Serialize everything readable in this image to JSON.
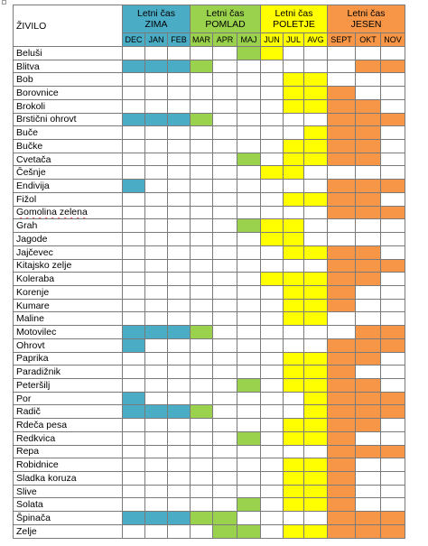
{
  "header": {
    "column_title": "ŽIVILO",
    "seasons": [
      {
        "line1": "Letni čas",
        "line2": "ZIMA",
        "key": "zima",
        "color": "#4bacc6"
      },
      {
        "line1": "Letni čas",
        "line2": "POMLAD",
        "key": "pomlad",
        "color": "#9bd24d"
      },
      {
        "line1": "Letni čas",
        "line2": "POLETJE",
        "key": "poletje",
        "color": "#ffff00"
      },
      {
        "line1": "Letni čas",
        "line2": "JESEN",
        "key": "jesen",
        "color": "#f79646"
      }
    ],
    "months": [
      "DEC",
      "JAN",
      "FEB",
      "MAR",
      "APR",
      "MAJ",
      "JUN",
      "JUL",
      "AVG",
      "SEPT",
      "OKT",
      "NOV"
    ]
  },
  "rows": [
    {
      "name": "Beluši",
      "months": [
        0,
        0,
        0,
        0,
        0,
        1,
        1,
        0,
        0,
        0,
        0,
        0
      ]
    },
    {
      "name": "Blitva",
      "months": [
        1,
        1,
        1,
        1,
        0,
        0,
        0,
        0,
        0,
        0,
        1,
        1
      ]
    },
    {
      "name": "Bob",
      "months": [
        0,
        0,
        0,
        0,
        0,
        0,
        0,
        1,
        1,
        0,
        0,
        0
      ]
    },
    {
      "name": "Borovnice",
      "months": [
        0,
        0,
        0,
        0,
        0,
        0,
        0,
        1,
        1,
        1,
        0,
        0
      ]
    },
    {
      "name": "Brokoli",
      "months": [
        0,
        0,
        0,
        0,
        0,
        0,
        0,
        1,
        1,
        1,
        1,
        0
      ]
    },
    {
      "name": "Brstični ohrovt",
      "months": [
        1,
        1,
        1,
        1,
        0,
        0,
        0,
        0,
        0,
        1,
        1,
        1
      ]
    },
    {
      "name": "Buče",
      "months": [
        0,
        0,
        0,
        0,
        0,
        0,
        0,
        0,
        1,
        1,
        1,
        0
      ]
    },
    {
      "name": "Bučke",
      "months": [
        0,
        0,
        0,
        0,
        0,
        0,
        0,
        1,
        1,
        1,
        1,
        0
      ]
    },
    {
      "name": "Cvetača",
      "months": [
        0,
        0,
        0,
        0,
        0,
        1,
        0,
        1,
        1,
        1,
        1,
        0
      ]
    },
    {
      "name": "Češnje",
      "months": [
        0,
        0,
        0,
        0,
        0,
        0,
        1,
        1,
        0,
        0,
        0,
        0
      ]
    },
    {
      "name": "Endivija",
      "months": [
        1,
        0,
        0,
        0,
        0,
        0,
        0,
        0,
        0,
        1,
        1,
        1
      ]
    },
    {
      "name": "Fižol",
      "months": [
        0,
        0,
        0,
        0,
        0,
        0,
        0,
        1,
        1,
        1,
        1,
        0
      ]
    },
    {
      "name": "Gomolina zelena",
      "months": [
        0,
        0,
        0,
        0,
        0,
        0,
        0,
        0,
        0,
        1,
        1,
        1
      ],
      "spell": true
    },
    {
      "name": "Grah",
      "months": [
        0,
        0,
        0,
        0,
        0,
        1,
        1,
        1,
        0,
        0,
        0,
        0
      ]
    },
    {
      "name": "Jagode",
      "months": [
        0,
        0,
        0,
        0,
        0,
        0,
        1,
        1,
        0,
        0,
        0,
        0
      ]
    },
    {
      "name": "Jajčevec",
      "months": [
        0,
        0,
        0,
        0,
        0,
        0,
        0,
        1,
        1,
        1,
        1,
        0
      ]
    },
    {
      "name": "Kitajsko zelje",
      "months": [
        0,
        0,
        0,
        0,
        0,
        0,
        0,
        0,
        0,
        1,
        1,
        1
      ]
    },
    {
      "name": "Koleraba",
      "months": [
        0,
        0,
        0,
        0,
        0,
        0,
        1,
        1,
        1,
        1,
        1,
        0
      ]
    },
    {
      "name": "Korenje",
      "months": [
        0,
        0,
        0,
        0,
        0,
        0,
        0,
        1,
        1,
        1,
        0,
        0
      ]
    },
    {
      "name": "Kumare",
      "months": [
        0,
        0,
        0,
        0,
        0,
        0,
        0,
        1,
        1,
        1,
        0,
        0
      ]
    },
    {
      "name": "Maline",
      "months": [
        0,
        0,
        0,
        0,
        0,
        0,
        0,
        1,
        1,
        0,
        0,
        0
      ]
    },
    {
      "name": "Motovilec",
      "months": [
        1,
        1,
        1,
        1,
        0,
        0,
        0,
        0,
        0,
        0,
        1,
        1
      ]
    },
    {
      "name": "Ohrovt",
      "months": [
        1,
        0,
        0,
        0,
        0,
        0,
        0,
        0,
        0,
        1,
        1,
        1
      ]
    },
    {
      "name": "Paprika",
      "months": [
        0,
        0,
        0,
        0,
        0,
        0,
        0,
        1,
        1,
        1,
        1,
        0
      ]
    },
    {
      "name": "Paradižnik",
      "months": [
        0,
        0,
        0,
        0,
        0,
        0,
        0,
        1,
        1,
        1,
        0,
        0
      ]
    },
    {
      "name": "Peteršilj",
      "months": [
        0,
        0,
        0,
        0,
        0,
        1,
        0,
        1,
        1,
        1,
        1,
        0
      ]
    },
    {
      "name": "Por",
      "months": [
        1,
        0,
        0,
        0,
        0,
        0,
        0,
        0,
        1,
        1,
        1,
        1
      ]
    },
    {
      "name": "Radič",
      "months": [
        1,
        1,
        1,
        1,
        0,
        0,
        0,
        0,
        1,
        1,
        1,
        1
      ]
    },
    {
      "name": "Rdeča pesa",
      "months": [
        0,
        0,
        0,
        0,
        0,
        0,
        0,
        1,
        1,
        1,
        1,
        0
      ]
    },
    {
      "name": "Redkvica",
      "months": [
        0,
        0,
        0,
        0,
        0,
        1,
        0,
        1,
        1,
        1,
        0,
        0
      ]
    },
    {
      "name": "Repa",
      "months": [
        0,
        0,
        0,
        0,
        0,
        0,
        0,
        0,
        0,
        1,
        1,
        1
      ]
    },
    {
      "name": "Robidnice",
      "months": [
        0,
        0,
        0,
        0,
        0,
        0,
        0,
        1,
        1,
        1,
        0,
        0
      ]
    },
    {
      "name": "Sladka koruza",
      "months": [
        0,
        0,
        0,
        0,
        0,
        0,
        0,
        1,
        1,
        1,
        0,
        0
      ]
    },
    {
      "name": "Slive",
      "months": [
        0,
        0,
        0,
        0,
        0,
        0,
        0,
        1,
        1,
        1,
        0,
        0
      ]
    },
    {
      "name": "Solata",
      "months": [
        0,
        0,
        0,
        0,
        0,
        1,
        0,
        1,
        1,
        1,
        0,
        0
      ]
    },
    {
      "name": "Špinača",
      "months": [
        1,
        1,
        1,
        1,
        1,
        0,
        0,
        0,
        0,
        1,
        1,
        1
      ]
    },
    {
      "name": "Zelje",
      "months": [
        0,
        0,
        0,
        0,
        1,
        1,
        0,
        1,
        1,
        1,
        1,
        1
      ]
    }
  ]
}
